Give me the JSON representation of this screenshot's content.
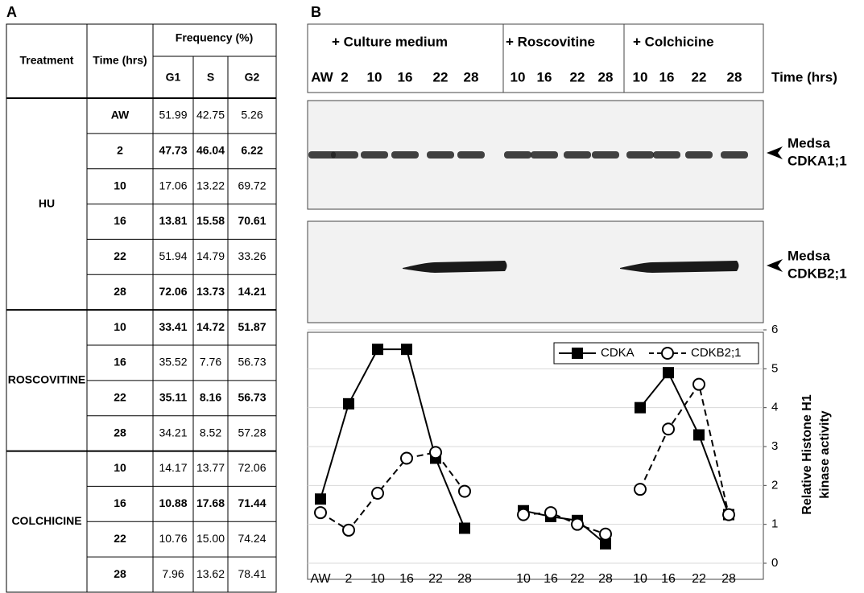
{
  "panel_a": {
    "label": "A",
    "table": {
      "headers": {
        "treatment": "Treatment",
        "time": "Time (hrs)",
        "frequency": "Frequency (%)",
        "g1": "G1",
        "s": "S",
        "g2": "G2"
      },
      "groups": [
        {
          "treatment": "HU",
          "rows": [
            {
              "time": "AW",
              "g1": "51.99",
              "s": "42.75",
              "g2": "5.26",
              "bold": false
            },
            {
              "time": "2",
              "g1": "47.73",
              "s": "46.04",
              "g2": "6.22",
              "bold": true
            },
            {
              "time": "10",
              "g1": "17.06",
              "s": "13.22",
              "g2": "69.72",
              "bold": false
            },
            {
              "time": "16",
              "g1": "13.81",
              "s": "15.58",
              "g2": "70.61",
              "bold": true
            },
            {
              "time": "22",
              "g1": "51.94",
              "s": "14.79",
              "g2": "33.26",
              "bold": false
            },
            {
              "time": "28",
              "g1": "72.06",
              "s": "13.73",
              "g2": "14.21",
              "bold": true
            }
          ]
        },
        {
          "treatment": "ROSCOVITINE",
          "rows": [
            {
              "time": "10",
              "g1": "33.41",
              "s": "14.72",
              "g2": "51.87",
              "bold": true
            },
            {
              "time": "16",
              "g1": "35.52",
              "s": "7.76",
              "g2": "56.73",
              "bold": false
            },
            {
              "time": "22",
              "g1": "35.11",
              "s": "8.16",
              "g2": "56.73",
              "bold": true
            },
            {
              "time": "28",
              "g1": "34.21",
              "s": "8.52",
              "g2": "57.28",
              "bold": false
            }
          ]
        },
        {
          "treatment": "COLCHICINE",
          "rows": [
            {
              "time": "10",
              "g1": "14.17",
              "s": "13.77",
              "g2": "72.06",
              "bold": false
            },
            {
              "time": "16",
              "g1": "10.88",
              "s": "17.68",
              "g2": "71.44",
              "bold": true
            },
            {
              "time": "22",
              "g1": "10.76",
              "s": "15.00",
              "g2": "74.24",
              "bold": false
            },
            {
              "time": "28",
              "g1": "7.96",
              "s": "13.62",
              "g2": "78.41",
              "bold": false
            }
          ]
        }
      ]
    }
  },
  "panel_b": {
    "label": "B",
    "lane_groups": [
      {
        "title": "+ Culture medium",
        "lanes": [
          "AW",
          "2",
          "10",
          "16",
          "22",
          "28"
        ]
      },
      {
        "title": "+ Roscovitine",
        "lanes": [
          "10",
          "16",
          "22",
          "28"
        ]
      },
      {
        "title": "+ Colchicine",
        "lanes": [
          "10",
          "16",
          "22",
          "28"
        ]
      }
    ],
    "time_label": "Time (hrs)",
    "blots": [
      {
        "label": [
          "Medsa",
          "CDKA1;1"
        ]
      },
      {
        "label": [
          "Medsa",
          "CDKB2;1"
        ]
      }
    ]
  },
  "chart_data": {
    "type": "line",
    "categories": [
      "AW",
      "2",
      "10",
      "16",
      "22",
      "28",
      null,
      "10",
      "16",
      "22",
      "28",
      null,
      "10",
      "16",
      "22",
      "28"
    ],
    "series": [
      {
        "name": "CDKA",
        "color": "#000000",
        "marker": "square",
        "dashed": false,
        "values": [
          1.65,
          4.1,
          5.5,
          5.5,
          2.7,
          0.9,
          null,
          1.35,
          1.2,
          1.1,
          0.5,
          null,
          4.0,
          4.9,
          3.3,
          1.25
        ]
      },
      {
        "name": "CDKB2;1",
        "color": "#000000",
        "marker": "circle",
        "dashed": true,
        "values": [
          1.3,
          0.85,
          1.8,
          2.7,
          2.85,
          1.85,
          null,
          1.25,
          1.3,
          1.0,
          0.75,
          null,
          1.9,
          3.45,
          4.6,
          1.25
        ]
      }
    ],
    "ylabel": [
      "Relative Histone H1",
      "kinase activity"
    ],
    "ylim": [
      0,
      6
    ],
    "yticks": [
      0,
      1,
      2,
      3,
      4,
      5,
      6
    ],
    "grid": true,
    "legend": "top-right"
  }
}
